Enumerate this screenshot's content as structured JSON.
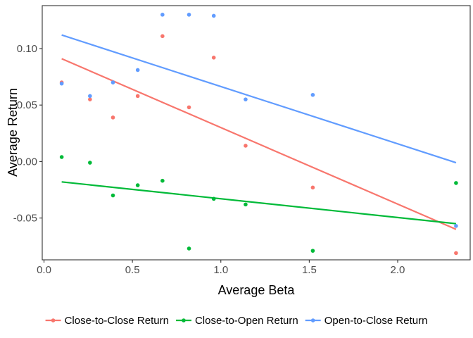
{
  "chart_data": {
    "type": "scatter",
    "title": "",
    "xlabel": "Average Beta",
    "ylabel": "Average Return",
    "xlim": [
      -0.01,
      2.41
    ],
    "ylim": [
      -0.087,
      0.138
    ],
    "x_ticks": [
      0.0,
      0.5,
      1.0,
      1.5,
      2.0
    ],
    "x_tick_labels": [
      "0.0",
      "0.5",
      "1.0",
      "1.5",
      "2.0"
    ],
    "y_ticks": [
      -0.05,
      0.0,
      0.05,
      0.1
    ],
    "y_tick_labels": [
      "-0.05",
      "0.00",
      "0.05",
      "0.10"
    ],
    "grid": false,
    "legend_position": "bottom",
    "series": [
      {
        "name": "Close-to-Close Return",
        "color": "#F8766D",
        "points": [
          {
            "x": 0.1,
            "y": 0.07
          },
          {
            "x": 0.26,
            "y": 0.055
          },
          {
            "x": 0.39,
            "y": 0.039
          },
          {
            "x": 0.53,
            "y": 0.058
          },
          {
            "x": 0.67,
            "y": 0.111
          },
          {
            "x": 0.82,
            "y": 0.048
          },
          {
            "x": 0.96,
            "y": 0.092
          },
          {
            "x": 1.14,
            "y": 0.014
          },
          {
            "x": 1.52,
            "y": -0.023
          },
          {
            "x": 2.33,
            "y": -0.081
          }
        ],
        "trend": {
          "x1": 0.1,
          "y1": 0.091,
          "x2": 2.33,
          "y2": -0.06
        }
      },
      {
        "name": "Close-to-Open Return",
        "color": "#00BA38",
        "points": [
          {
            "x": 0.1,
            "y": 0.004
          },
          {
            "x": 0.26,
            "y": -0.001
          },
          {
            "x": 0.39,
            "y": -0.03
          },
          {
            "x": 0.53,
            "y": -0.021
          },
          {
            "x": 0.67,
            "y": -0.017
          },
          {
            "x": 0.82,
            "y": -0.077
          },
          {
            "x": 0.96,
            "y": -0.033
          },
          {
            "x": 1.14,
            "y": -0.038
          },
          {
            "x": 1.52,
            "y": -0.079
          },
          {
            "x": 2.33,
            "y": -0.019
          }
        ],
        "trend": {
          "x1": 0.1,
          "y1": -0.018,
          "x2": 2.33,
          "y2": -0.055
        }
      },
      {
        "name": "Open-to-Close Return",
        "color": "#619CFF",
        "points": [
          {
            "x": 0.1,
            "y": 0.069
          },
          {
            "x": 0.26,
            "y": 0.058
          },
          {
            "x": 0.39,
            "y": 0.07
          },
          {
            "x": 0.53,
            "y": 0.081
          },
          {
            "x": 0.67,
            "y": 0.13
          },
          {
            "x": 0.82,
            "y": 0.13
          },
          {
            "x": 0.96,
            "y": 0.129
          },
          {
            "x": 1.14,
            "y": 0.055
          },
          {
            "x": 1.52,
            "y": 0.059
          },
          {
            "x": 2.33,
            "y": -0.057
          }
        ],
        "trend": {
          "x1": 0.1,
          "y1": 0.112,
          "x2": 2.33,
          "y2": -0.001
        }
      }
    ]
  }
}
